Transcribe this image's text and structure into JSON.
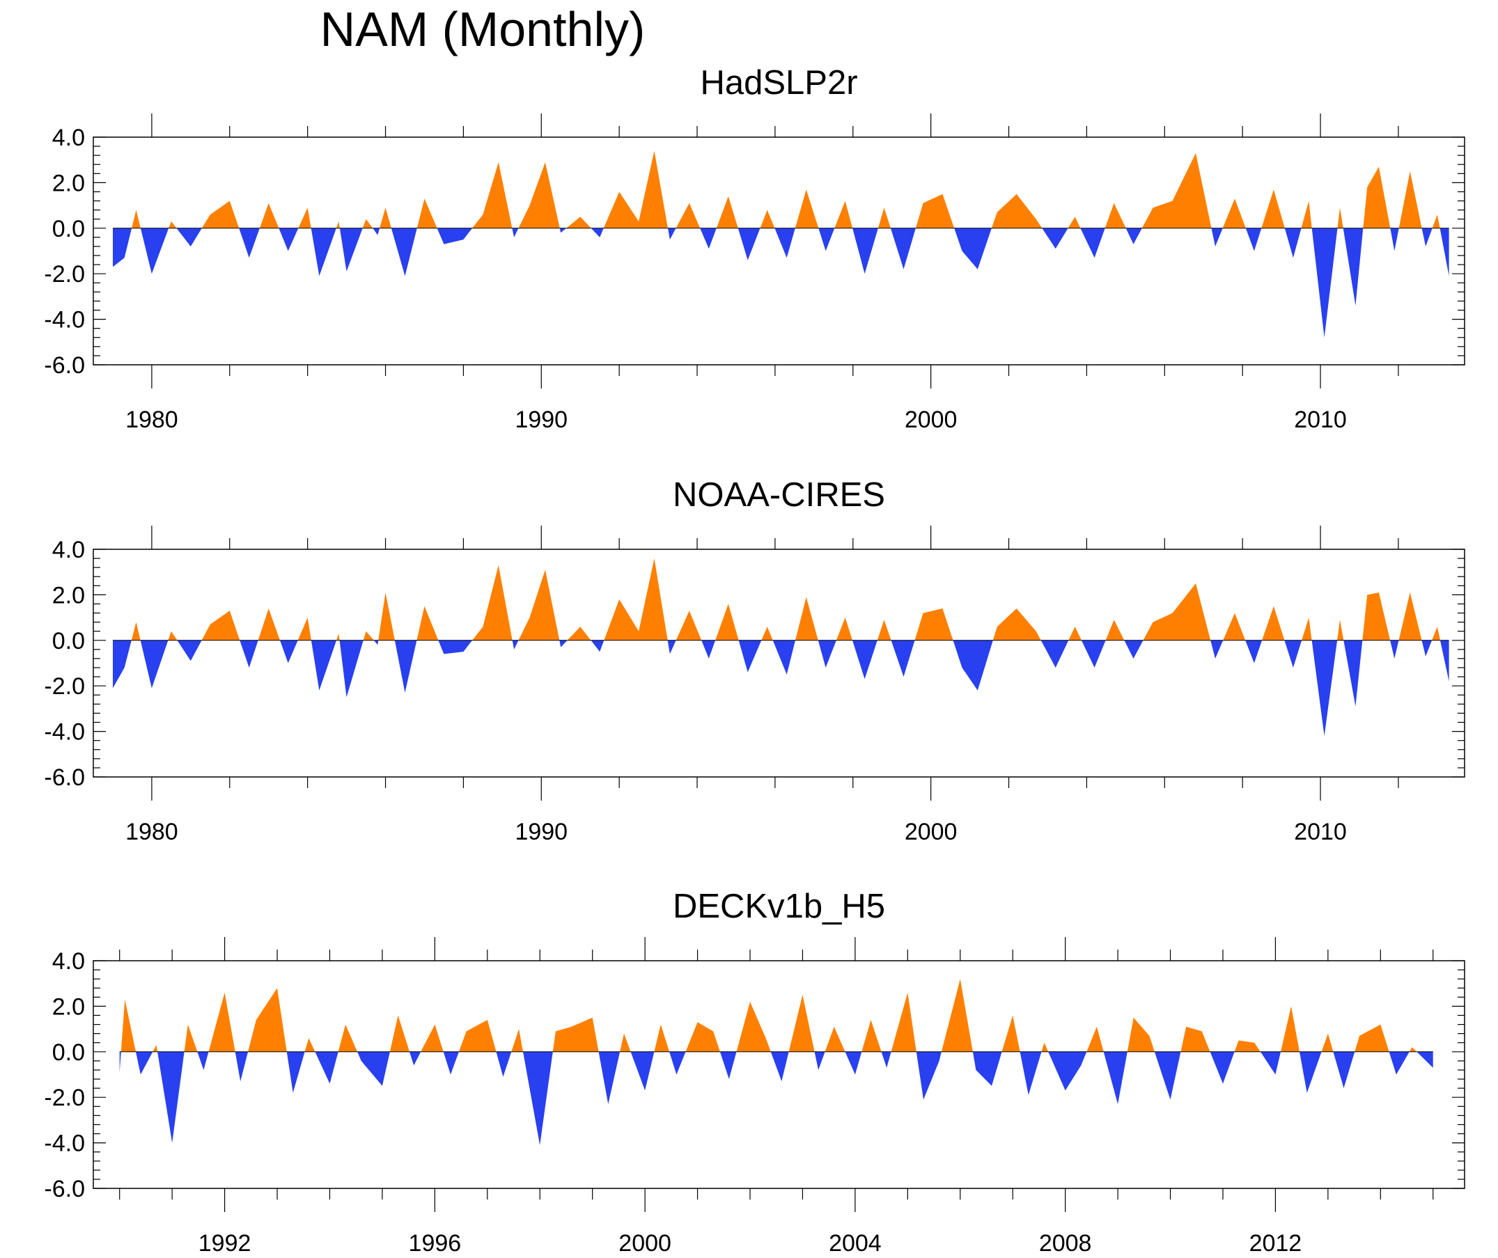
{
  "title": "NAM (Monthly)",
  "colors": {
    "positive": "#FF8000",
    "negative": "#2840F0",
    "axis": "#000000"
  },
  "chart_data": [
    {
      "type": "area",
      "title": "HadSLP2r",
      "xlim": [
        1978.5,
        2013.7
      ],
      "ylim": [
        -6,
        4
      ],
      "yticks": [
        4,
        2,
        0,
        -2,
        -4,
        -6
      ],
      "ytick_labels": [
        "4.0",
        "2.0",
        "0.0",
        "-2.0",
        "-4.0",
        "-6.0"
      ],
      "xticks": [
        1980,
        1990,
        2000,
        2010
      ],
      "xtick_labels": [
        "1980",
        "1990",
        "2000",
        "2010"
      ],
      "xminor_step": 2,
      "series": {
        "x": [
          1979,
          1979.3,
          1979.6,
          1980,
          1980.5,
          1981,
          1981.5,
          1982,
          1982.5,
          1983,
          1983.5,
          1984,
          1984.3,
          1984.8,
          1985,
          1985.5,
          1985.8,
          1986,
          1986.5,
          1987,
          1987.5,
          1988,
          1988.5,
          1988.9,
          1989.3,
          1989.7,
          1990.1,
          1990.5,
          1991,
          1991.5,
          1992,
          1992.5,
          1992.9,
          1993.3,
          1993.8,
          1994.3,
          1994.8,
          1995.3,
          1995.8,
          1996.3,
          1996.8,
          1997.3,
          1997.8,
          1998.3,
          1998.8,
          1999.3,
          1999.8,
          2000.3,
          2000.8,
          2001.2,
          2001.7,
          2002.2,
          2002.7,
          2003.2,
          2003.7,
          2004.2,
          2004.7,
          2005.2,
          2005.7,
          2006.2,
          2006.8,
          2007.3,
          2007.8,
          2008.3,
          2008.8,
          2009.3,
          2009.7,
          2010.1,
          2010.5,
          2010.9,
          2011.2,
          2011.5,
          2011.9,
          2012.3,
          2012.7,
          2013.0,
          2013.3
        ],
        "values": [
          -1.7,
          -1.3,
          0.8,
          -2.0,
          0.3,
          -0.8,
          0.6,
          1.2,
          -1.3,
          1.1,
          -1.0,
          0.9,
          -2.1,
          0.3,
          -1.9,
          0.4,
          -0.3,
          0.9,
          -2.1,
          1.3,
          -0.7,
          -0.5,
          0.6,
          2.9,
          -0.4,
          1.0,
          2.9,
          -0.2,
          0.5,
          -0.4,
          1.6,
          0.3,
          3.4,
          -0.5,
          1.1,
          -0.9,
          1.4,
          -1.4,
          0.8,
          -1.3,
          1.7,
          -1.0,
          1.2,
          -2.0,
          0.9,
          -1.8,
          1.1,
          1.5,
          -1.0,
          -1.8,
          0.7,
          1.5,
          0.4,
          -0.9,
          0.5,
          -1.3,
          1.1,
          -0.7,
          0.9,
          1.2,
          3.3,
          -0.8,
          1.3,
          -1.0,
          1.7,
          -1.3,
          1.2,
          -4.8,
          0.9,
          -3.4,
          1.8,
          2.7,
          -1.0,
          2.5,
          -0.8,
          0.6,
          -2.1
        ]
      }
    },
    {
      "type": "area",
      "title": "NOAA-CIRES",
      "xlim": [
        1978.5,
        2013.7
      ],
      "ylim": [
        -6,
        4
      ],
      "yticks": [
        4,
        2,
        0,
        -2,
        -4,
        -6
      ],
      "ytick_labels": [
        "4.0",
        "2.0",
        "0.0",
        "-2.0",
        "-4.0",
        "-6.0"
      ],
      "xticks": [
        1980,
        1990,
        2000,
        2010
      ],
      "xtick_labels": [
        "1980",
        "1990",
        "2000",
        "2010"
      ],
      "xminor_step": 2,
      "series": {
        "x": [
          1979,
          1979.3,
          1979.6,
          1980,
          1980.5,
          1981,
          1981.5,
          1982,
          1982.5,
          1983,
          1983.5,
          1984,
          1984.3,
          1984.8,
          1985,
          1985.5,
          1985.8,
          1986,
          1986.5,
          1987,
          1987.5,
          1988,
          1988.5,
          1988.9,
          1989.3,
          1989.7,
          1990.1,
          1990.5,
          1991,
          1991.5,
          1992,
          1992.5,
          1992.9,
          1993.3,
          1993.8,
          1994.3,
          1994.8,
          1995.3,
          1995.8,
          1996.3,
          1996.8,
          1997.3,
          1997.8,
          1998.3,
          1998.8,
          1999.3,
          1999.8,
          2000.3,
          2000.8,
          2001.2,
          2001.7,
          2002.2,
          2002.7,
          2003.2,
          2003.7,
          2004.2,
          2004.7,
          2005.2,
          2005.7,
          2006.2,
          2006.8,
          2007.3,
          2007.8,
          2008.3,
          2008.8,
          2009.3,
          2009.7,
          2010.1,
          2010.5,
          2010.9,
          2011.2,
          2011.5,
          2011.9,
          2012.3,
          2012.7,
          2013.0,
          2013.3
        ],
        "values": [
          -2.1,
          -1.2,
          0.8,
          -2.1,
          0.4,
          -0.9,
          0.7,
          1.3,
          -1.2,
          1.4,
          -1.0,
          1.0,
          -2.2,
          0.3,
          -2.5,
          0.4,
          -0.2,
          2.1,
          -2.3,
          1.5,
          -0.6,
          -0.5,
          0.6,
          3.3,
          -0.4,
          1.0,
          3.1,
          -0.3,
          0.6,
          -0.5,
          1.8,
          0.4,
          3.6,
          -0.6,
          1.3,
          -0.8,
          1.6,
          -1.4,
          0.6,
          -1.5,
          1.9,
          -1.2,
          1.0,
          -1.7,
          0.9,
          -1.6,
          1.2,
          1.4,
          -1.2,
          -2.2,
          0.6,
          1.4,
          0.4,
          -1.2,
          0.6,
          -1.2,
          0.9,
          -0.8,
          0.8,
          1.2,
          2.5,
          -0.8,
          1.2,
          -1.0,
          1.5,
          -1.2,
          1.0,
          -4.2,
          0.9,
          -2.9,
          2.0,
          2.1,
          -0.8,
          2.1,
          -0.7,
          0.6,
          -1.8
        ]
      }
    },
    {
      "type": "area",
      "title": "DECKv1b_H5",
      "xlim": [
        1989.5,
        2015.6
      ],
      "ylim": [
        -6,
        4
      ],
      "yticks": [
        4,
        2,
        0,
        -2,
        -4,
        -6
      ],
      "ytick_labels": [
        "4.0",
        "2.0",
        "0.0",
        "-2.0",
        "-4.0",
        "-6.0"
      ],
      "xticks": [
        1992,
        1996,
        2000,
        2004,
        2008,
        2012
      ],
      "xtick_labels": [
        "1992",
        "1996",
        "2000",
        "2004",
        "2008",
        "2012"
      ],
      "xminor_step": 1,
      "series": {
        "x": [
          1990,
          1990.1,
          1990.4,
          1990.7,
          1991,
          1991.3,
          1991.6,
          1992,
          1992.3,
          1992.6,
          1993,
          1993.3,
          1993.6,
          1994,
          1994.3,
          1994.6,
          1995,
          1995.3,
          1995.6,
          1996,
          1996.3,
          1996.6,
          1997,
          1997.3,
          1997.6,
          1998,
          1998.3,
          1998.6,
          1999,
          1999.3,
          1999.6,
          2000,
          2000.3,
          2000.6,
          2001,
          2001.3,
          2001.6,
          2002,
          2002.3,
          2002.6,
          2003,
          2003.3,
          2003.6,
          2004,
          2004.3,
          2004.6,
          2005,
          2005.3,
          2005.6,
          2006,
          2006.3,
          2006.6,
          2007,
          2007.3,
          2007.6,
          2008,
          2008.3,
          2008.6,
          2009,
          2009.3,
          2009.6,
          2010,
          2010.3,
          2010.6,
          2011,
          2011.3,
          2011.6,
          2012,
          2012.3,
          2012.6,
          2013,
          2013.3,
          2013.6,
          2014,
          2014.3,
          2014.6,
          2015
        ],
        "values": [
          -0.9,
          2.3,
          -1.0,
          0.3,
          -4.0,
          1.2,
          -0.8,
          2.6,
          -1.3,
          1.4,
          2.8,
          -1.8,
          0.6,
          -1.4,
          1.2,
          -0.4,
          -1.5,
          1.6,
          -0.6,
          1.2,
          -1.0,
          0.9,
          1.4,
          -1.1,
          1.0,
          -4.1,
          0.9,
          1.1,
          1.5,
          -2.3,
          0.8,
          -1.7,
          1.2,
          -1.0,
          1.3,
          0.9,
          -1.2,
          2.2,
          0.6,
          -1.3,
          2.5,
          -0.8,
          1.1,
          -1.0,
          1.4,
          -0.7,
          2.6,
          -2.1,
          -0.4,
          3.2,
          -0.8,
          -1.5,
          1.6,
          -1.9,
          0.4,
          -1.7,
          -0.6,
          1.1,
          -2.3,
          1.5,
          0.7,
          -2.1,
          1.1,
          0.9,
          -1.4,
          0.5,
          0.4,
          -1.0,
          2.0,
          -1.8,
          0.8,
          -1.6,
          0.7,
          1.2,
          -1.0,
          0.2,
          -0.7
        ]
      }
    }
  ]
}
